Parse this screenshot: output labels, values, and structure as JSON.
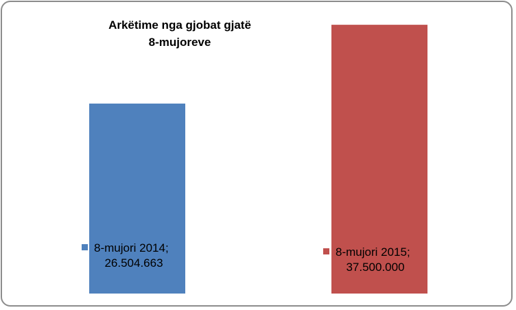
{
  "chart_data": {
    "type": "bar",
    "title_lines": [
      "Arkëtime nga gjobat gjatë",
      "8-mujoreve"
    ],
    "xlabel": "",
    "ylabel": "",
    "ylim": [
      0,
      40000000
    ],
    "grid": false,
    "legend": "none",
    "categories": [
      "8-mujori 2014",
      "8-mujori 2015"
    ],
    "values": [
      26504663,
      37500000
    ],
    "data_labels": [
      {
        "line1": "8-mujori 2014;",
        "line2": "26.504.663"
      },
      {
        "line1": "8-mujori 2015;",
        "line2": "37.500.000"
      }
    ],
    "colors": [
      "#4f81bd",
      "#c0504d"
    ]
  }
}
